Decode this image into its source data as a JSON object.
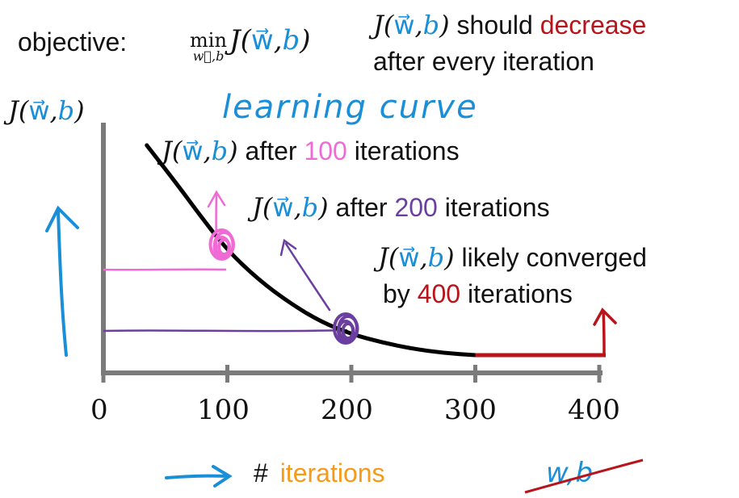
{
  "header": {
    "objective_label": "objective:",
    "min_word": "min",
    "min_sub": "w⃗,b",
    "decrease_pre": "should",
    "decrease_word": "decrease",
    "decrease_line2": "after every iteration"
  },
  "J_expr": {
    "J": "J(",
    "w": "w⃗",
    "comma": ",",
    "b": "b",
    "close": ")"
  },
  "title_hand": "learning curve",
  "annotations": {
    "a100_pre": "after",
    "a100_num": "100",
    "a100_post": "iterations",
    "a200_pre": "after",
    "a200_num": "200",
    "a200_post": "iterations",
    "a400_l1": "likely converged",
    "a400_l2_pre": "by",
    "a400_l2_num": "400",
    "a400_l2_post": "iterations"
  },
  "xaxis": {
    "hash": "#",
    "word": "iterations",
    "crossed": "w,b"
  },
  "colors": {
    "pink": "#f06ad6",
    "purple": "#6a3fa0",
    "red": "#b8141c",
    "blue": "#1a8fd8",
    "orange": "#f59a1b",
    "axis": "#7b7b7b"
  },
  "chart_data": {
    "type": "line",
    "xlabel": "# iterations",
    "ylabel": "J(w⃗,b)",
    "title": "learning curve",
    "xlim": [
      0,
      400
    ],
    "x_ticks": [
      0,
      100,
      200,
      300,
      400
    ],
    "tick_labels": [
      "0",
      "100",
      "200",
      "300",
      "400"
    ],
    "series": [
      {
        "x": [
          35,
          60,
          80,
          100,
          125,
          150,
          175,
          200,
          225,
          250,
          275,
          300
        ],
        "y": [
          1.0,
          0.81,
          0.65,
          0.5,
          0.36,
          0.25,
          0.16,
          0.1,
          0.06,
          0.03,
          0.01,
          0.0
        ]
      },
      {
        "x": [
          300,
          400
        ],
        "y": [
          0.0,
          0.0
        ]
      }
    ],
    "highlight_points": [
      {
        "x": 100,
        "y": 0.5
      },
      {
        "x": 200,
        "y": 0.1
      }
    ]
  }
}
